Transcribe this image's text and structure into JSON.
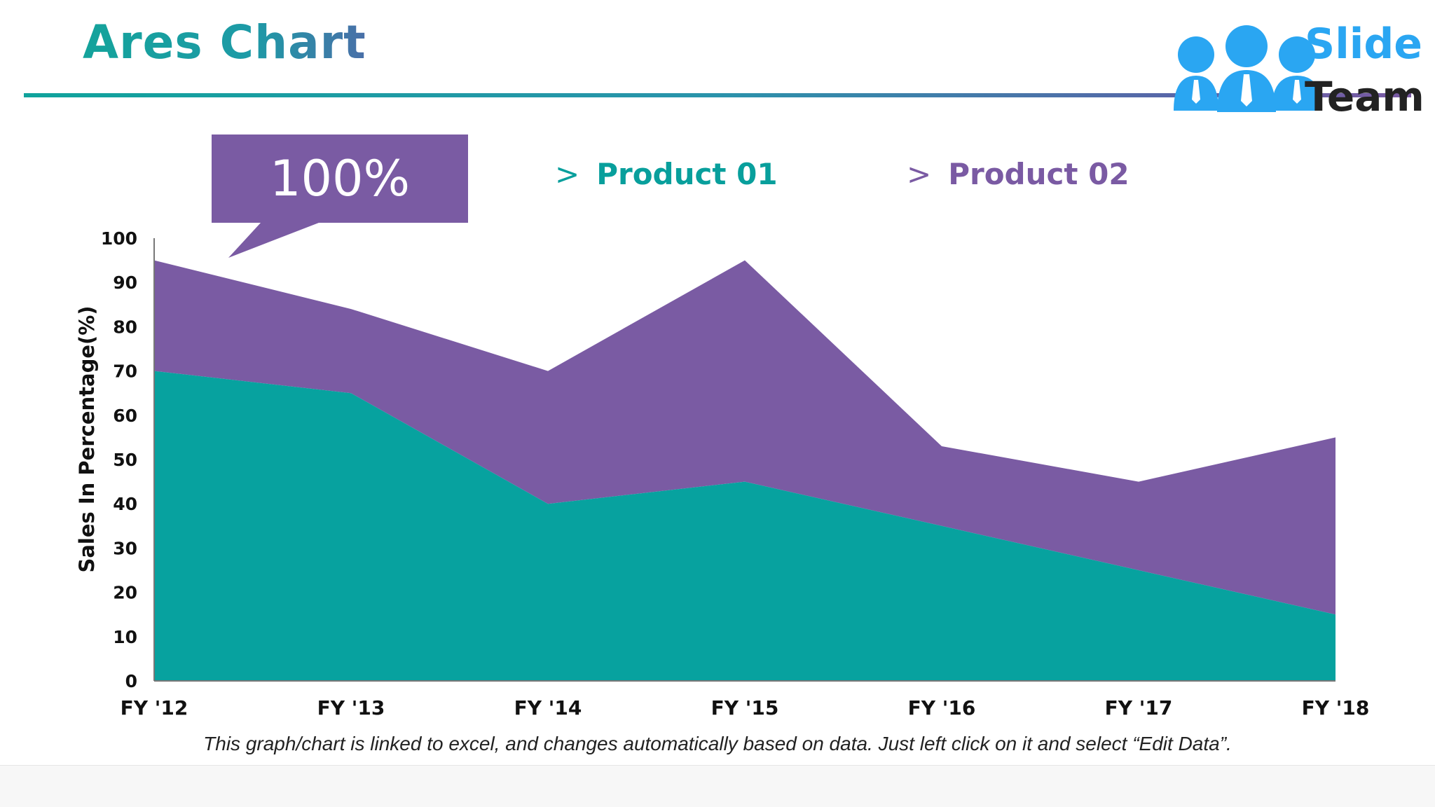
{
  "slide": {
    "title": "Ares Chart",
    "logo": {
      "line1": "Slide",
      "line2": "Team"
    },
    "callout": {
      "text": "100%"
    },
    "legend": [
      {
        "arrow": ">",
        "label": "Product 01"
      },
      {
        "arrow": ">",
        "label": "Product 02"
      }
    ],
    "footnote": "This graph/chart is linked to excel, and changes automatically based on data. Just left click on it and select “Edit Data”."
  },
  "colors": {
    "product01": "#07a29f",
    "product02": "#7a5ba3",
    "title_teal": "#14a39b",
    "logo_blue": "#2aa6f2"
  },
  "chart_data": {
    "type": "area",
    "stacked": true,
    "categories": [
      "FY '12",
      "FY '13",
      "FY '14",
      "FY '15",
      "FY '16",
      "FY '17",
      "FY '18"
    ],
    "series": [
      {
        "name": "Product 01",
        "values": [
          70,
          65,
          40,
          45,
          35,
          25,
          15
        ]
      },
      {
        "name": "Product 02",
        "values": [
          25,
          19,
          30,
          50,
          18,
          20,
          40
        ]
      }
    ],
    "ylabel": "Sales In Percentage(%)",
    "ylim": [
      0,
      100
    ],
    "yticks": [
      "0",
      "10",
      "20",
      "30",
      "40",
      "50",
      "60",
      "70",
      "80",
      "90",
      "100"
    ],
    "grid": false,
    "legend_position": "top"
  }
}
